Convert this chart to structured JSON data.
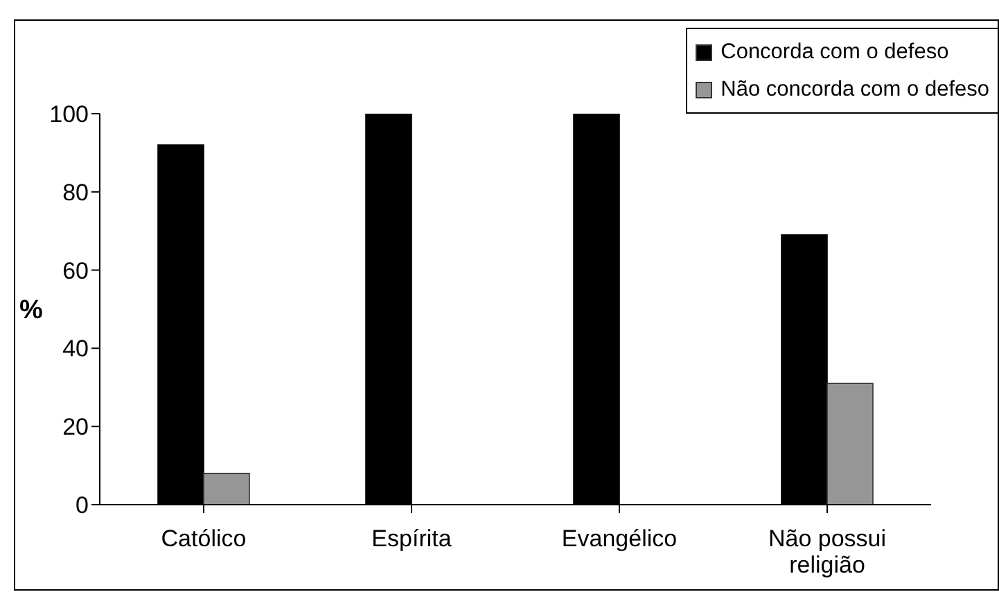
{
  "chart_data": {
    "type": "bar",
    "ylabel": "%",
    "categories": [
      "Católico",
      "Espírita",
      "Evangélico",
      "Não possui religião"
    ],
    "series": [
      {
        "name": "Concorda com o defeso",
        "color": "#000000",
        "values": [
          92,
          100,
          100,
          69
        ]
      },
      {
        "name": "Não concorda com o defeso",
        "color": "#969696",
        "values": [
          8,
          0,
          0,
          31
        ]
      }
    ],
    "ylim": [
      0,
      100
    ],
    "yticks": [
      0,
      20,
      40,
      60,
      80,
      100
    ],
    "grid": false,
    "legend": "top right"
  }
}
